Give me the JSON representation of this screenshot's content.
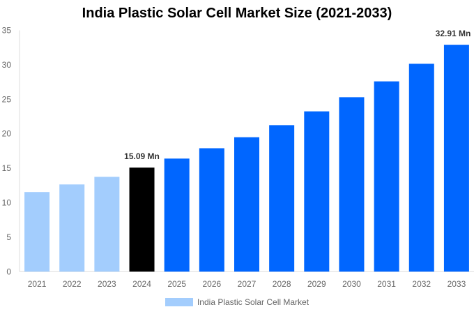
{
  "chart_data": {
    "type": "bar",
    "title": "India Plastic Solar Cell Market Size (2021-2033)",
    "categories": [
      "2021",
      "2022",
      "2023",
      "2024",
      "2025",
      "2026",
      "2027",
      "2028",
      "2029",
      "2030",
      "2031",
      "2032",
      "2033"
    ],
    "series": [
      {
        "name": "India Plastic Solar Cell Market",
        "values": [
          11.55,
          12.65,
          13.75,
          15.09,
          16.4,
          17.9,
          19.5,
          21.25,
          23.25,
          25.3,
          27.6,
          30.15,
          32.91
        ]
      }
    ],
    "bar_colors": [
      "#a3cdfd",
      "#a3cdfd",
      "#a3cdfd",
      "#000000",
      "#0066ff",
      "#0066ff",
      "#0066ff",
      "#0066ff",
      "#0066ff",
      "#0066ff",
      "#0066ff",
      "#0066ff",
      "#0066ff"
    ],
    "data_labels": {
      "3": "15.09 Mn",
      "12": "32.91 Mn"
    },
    "ylim": [
      0,
      35
    ],
    "yticks": [
      0,
      5,
      10,
      15,
      20,
      25,
      30,
      35
    ],
    "grid": false,
    "legend_position": "bottom",
    "xlabel": "",
    "ylabel": ""
  }
}
